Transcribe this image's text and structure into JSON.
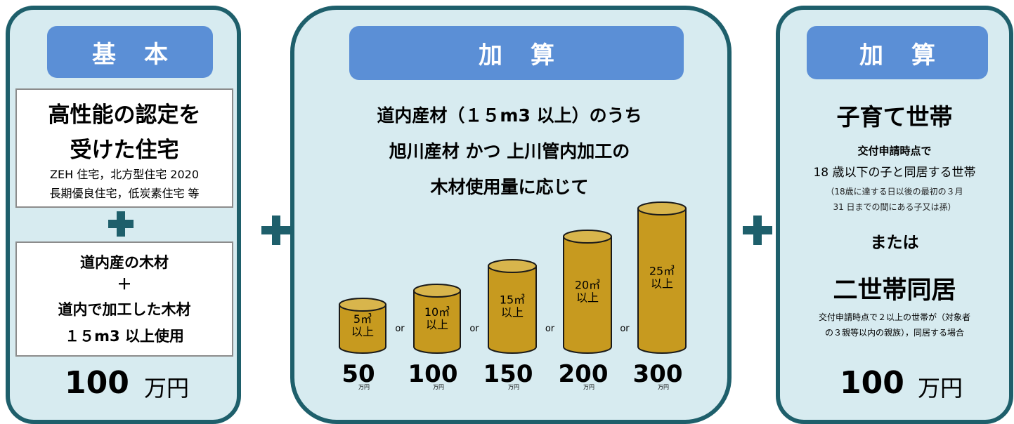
{
  "panel_left": {
    "header": "基本",
    "box1": {
      "line1": "高性能の認定を",
      "line2": "受けた住宅",
      "line3": "ZEH 住宅，北方型住宅 2020",
      "line4": "長期優良住宅，低炭素住宅 等"
    },
    "box2": {
      "line1": "道内産の木材",
      "plus": "＋",
      "line2": "道内で加工した木材",
      "line3": "１５m3 以上使用"
    },
    "amount": "100",
    "unit": "万円"
  },
  "panel_middle": {
    "header": "加算",
    "title1": "道内産材（１５m3 以上）のうち",
    "title2": "旭川産材 かつ 上川管内加工の",
    "title3": "木材使用量に応じて",
    "tanks": [
      {
        "volume": "5㎥",
        "suffix": "以上",
        "amount": "50",
        "unit": "万円"
      },
      {
        "volume": "10㎥",
        "suffix": "以上",
        "amount": "100",
        "unit": "万円"
      },
      {
        "volume": "15㎥",
        "suffix": "以上",
        "amount": "150",
        "unit": "万円"
      },
      {
        "volume": "20㎥",
        "suffix": "以上",
        "amount": "200",
        "unit": "万円"
      },
      {
        "volume": "25㎥",
        "suffix": "以上",
        "amount": "300",
        "unit": "万円"
      }
    ],
    "or_label": "or"
  },
  "panel_right": {
    "header": "加算",
    "title1": "子育て世帯",
    "desc1": "交付申請時点で",
    "desc2": "18 歳以下の子と同居する世帯",
    "note1": "（18歳に達する日以後の最初の３月",
    "note2": "31 日までの間にある子又は孫）",
    "or_text": "または",
    "title2": "二世帯同居",
    "desc3": "交付申請時点で２以上の世帯が（対象者",
    "desc4": "の３親等以内の親族），同居する場合",
    "amount": "100",
    "unit": "万円"
  },
  "colors": {
    "panel_bg": "#d7ebf0",
    "panel_border": "#1e5f6b",
    "header_bg": "#5b8fd6",
    "tank": "#c79a1f"
  }
}
